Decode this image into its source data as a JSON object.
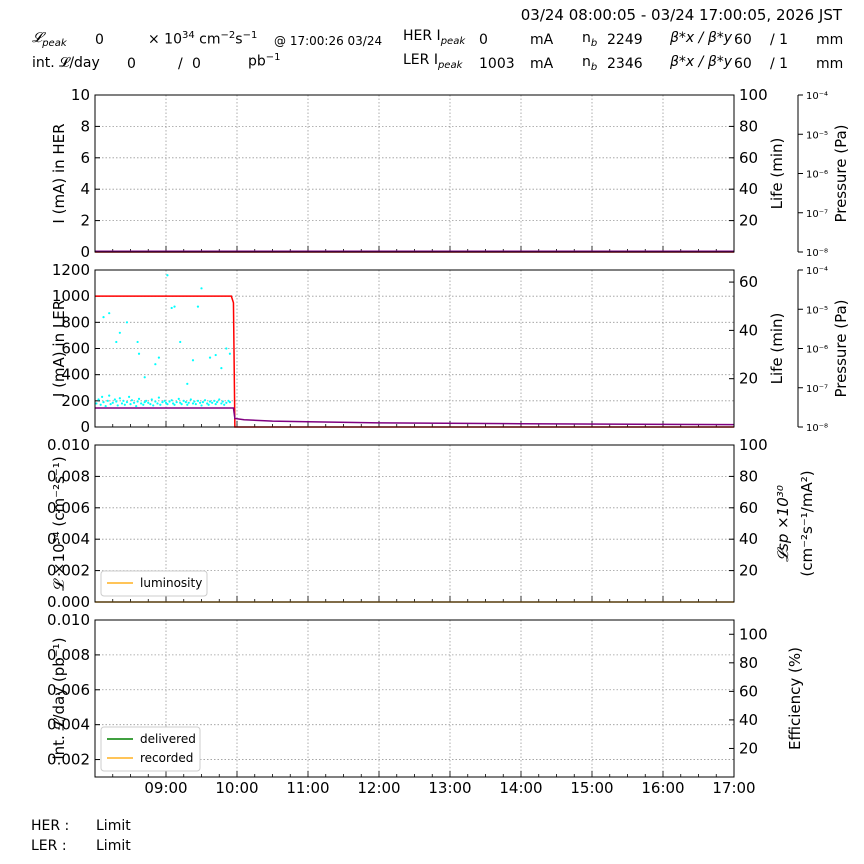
{
  "header": {
    "time_range": "03/24 08:00:05 - 03/24 17:00:05, 2026 JST",
    "lpeak_label": "𝓛",
    "lpeak_sub": "peak",
    "lpeak_value": "0",
    "lpeak_unit_a": "× 10",
    "lpeak_unit_exp1": "34",
    "lpeak_unit_b": " cm",
    "lpeak_unit_exp2": "−2",
    "lpeak_unit_c": "s",
    "lpeak_unit_exp3": "−1",
    "lpeak_time": "@ 17:00:26 03/24",
    "intl_label": "int. 𝓛/day",
    "intl_value": "0",
    "intl_slash": "/",
    "intl_value2": "0",
    "intl_unit": "pb",
    "intl_unit_exp": "−1",
    "her_label": "HER I",
    "her_sub": "peak",
    "her_value": "0",
    "her_unit": "mA",
    "ler_label": "LER I",
    "ler_sub": "peak",
    "ler_value": "1003",
    "ler_unit": "mA",
    "nb_label": "n",
    "nb_sub": "b",
    "nb_her": "2249",
    "nb_ler": "2346",
    "beta_label": "β*x / β*y",
    "beta_her_x": "60",
    "beta_her_y": "/ 1",
    "beta_ler_x": "60",
    "beta_ler_y": "/ 1",
    "beta_unit": "mm"
  },
  "footer": {
    "her_label": "HER :",
    "her_status": "Limit",
    "ler_label": "LER :",
    "ler_status": "Limit"
  },
  "chart_data": [
    {
      "type": "line",
      "panel": "HER",
      "ylabel": "I (mA) in HER",
      "ylim": [
        0,
        10
      ],
      "yticks": [
        "0",
        "2",
        "4",
        "6",
        "8",
        "10"
      ],
      "right_ylabel": "Life (min)",
      "right_ylim": [
        0,
        100
      ],
      "right_yticks": [
        "20",
        "40",
        "60",
        "80",
        "100"
      ],
      "pressure_label": "Pressure (Pa)",
      "pressure_ticks": [
        "10⁻⁸",
        "10⁻⁷",
        "10⁻⁶",
        "10⁻⁵",
        "10⁻⁴"
      ],
      "grid": true,
      "series": [
        {
          "color": "#ff0000",
          "x": [
            8.0,
            17.0
          ],
          "y": [
            0,
            0
          ]
        },
        {
          "color": "#800080",
          "x": [
            8.0,
            17.0
          ],
          "y": [
            0.05,
            0.05
          ]
        }
      ]
    },
    {
      "type": "line",
      "panel": "LER",
      "ylabel": "I (mA) in LER",
      "ylim": [
        0,
        1200
      ],
      "yticks": [
        "0",
        "200",
        "400",
        "600",
        "800",
        "1000",
        "1200"
      ],
      "right_ylabel": "Life (min)",
      "right_ylim": [
        0,
        65
      ],
      "right_yticks": [
        "20",
        "40",
        "60"
      ],
      "pressure_label": "Pressure (Pa)",
      "pressure_ticks": [
        "10⁻⁸",
        "10⁻⁷",
        "10⁻⁶",
        "10⁻⁵",
        "10⁻⁴"
      ],
      "grid": true,
      "series": [
        {
          "color": "#ff0000",
          "x": [
            8.0,
            9.92,
            9.95,
            9.97,
            10.0,
            17.0
          ],
          "y": [
            1000,
            1000,
            950,
            0,
            0,
            0
          ]
        },
        {
          "color": "#800080",
          "x": [
            8.0,
            9.95,
            9.97,
            10.1,
            10.5,
            11.0,
            12.0,
            14.0,
            17.0
          ],
          "y": [
            145,
            145,
            65,
            55,
            45,
            40,
            32,
            25,
            18
          ]
        }
      ],
      "scatter": {
        "color": "#00ffff",
        "x": [
          8.02,
          8.05,
          8.08,
          8.1,
          8.12,
          8.15,
          8.18,
          8.2,
          8.22,
          8.25,
          8.28,
          8.3,
          8.32,
          8.35,
          8.38,
          8.4,
          8.42,
          8.45,
          8.48,
          8.5,
          8.52,
          8.55,
          8.58,
          8.6,
          8.62,
          8.65,
          8.68,
          8.7,
          8.72,
          8.75,
          8.78,
          8.8,
          8.82,
          8.85,
          8.88,
          8.9,
          8.92,
          8.95,
          8.98,
          9.0,
          9.02,
          9.05,
          9.08,
          9.1,
          9.12,
          9.15,
          9.18,
          9.2,
          9.22,
          9.25,
          9.28,
          9.3,
          9.32,
          9.35,
          9.38,
          9.4,
          9.42,
          9.45,
          9.48,
          9.5,
          9.52,
          9.55,
          9.58,
          9.6,
          9.62,
          9.65,
          9.68,
          9.7,
          9.72,
          9.75,
          9.78,
          9.8,
          9.82,
          9.85,
          9.88,
          9.9,
          8.12,
          8.2,
          8.3,
          8.35,
          8.45,
          8.6,
          8.62,
          8.7,
          8.85,
          8.9,
          9.02,
          9.08,
          9.12,
          9.2,
          9.3,
          9.38,
          9.45,
          9.5,
          9.62,
          9.7,
          9.78,
          9.85,
          9.9
        ],
        "y": [
          180,
          210,
          170,
          230,
          190,
          160,
          200,
          240,
          175,
          185,
          210,
          195,
          165,
          220,
          180,
          200,
          170,
          190,
          230,
          175,
          205,
          185,
          160,
          195,
          215,
          180,
          170,
          190,
          200,
          185,
          175,
          210,
          165,
          195,
          180,
          225,
          170,
          190,
          200,
          185,
          175,
          195,
          205,
          180,
          170,
          190,
          215,
          185,
          175,
          200,
          190,
          170,
          185,
          210,
          180,
          195,
          175,
          200,
          185,
          165,
          190,
          205,
          180,
          170,
          195,
          185,
          200,
          175,
          190,
          210,
          180,
          195,
          170,
          185,
          200,
          190,
          840,
          870,
          650,
          720,
          800,
          650,
          560,
          380,
          480,
          530,
          1160,
          910,
          920,
          650,
          330,
          510,
          920,
          1060,
          530,
          550,
          450,
          600,
          560
        ]
      }
    },
    {
      "type": "line",
      "panel": "luminosity",
      "ylabel": "𝓛 ×10³⁴ (cm⁻²s⁻¹)",
      "ylim": [
        0,
        0.01
      ],
      "yticks": [
        "0.000",
        "0.002",
        "0.004",
        "0.006",
        "0.008",
        "0.010"
      ],
      "right_ylabel": "𝓛sp ×10³⁰",
      "right_ylabel2": "(cm⁻²s⁻¹/mA²)",
      "right_ylim": [
        0,
        100
      ],
      "right_yticks": [
        "20",
        "40",
        "60",
        "80",
        "100"
      ],
      "grid": true,
      "legend": [
        {
          "name": "luminosity",
          "color": "#ffb020"
        }
      ],
      "legend_position": "lower-left",
      "series": [
        {
          "name": "luminosity",
          "color": "#ffb020",
          "x": [
            8.0,
            17.0
          ],
          "y": [
            0,
            0
          ]
        }
      ]
    },
    {
      "type": "line",
      "panel": "integrated",
      "ylabel": "int. 𝓛/day (pb⁻¹)",
      "ylim": [
        0.001,
        0.01
      ],
      "yticks": [
        "0.002",
        "0.004",
        "0.006",
        "0.008",
        "0.010"
      ],
      "right_ylabel": "Efficiency (%)",
      "right_ylim": [
        0,
        110
      ],
      "right_yticks": [
        "20",
        "40",
        "60",
        "80",
        "100"
      ],
      "grid": true,
      "legend": [
        {
          "name": "delivered",
          "color": "#008000"
        },
        {
          "name": "recorded",
          "color": "#ffb020"
        }
      ],
      "legend_position": "lower-left",
      "xticks": [
        "09:00",
        "10:00",
        "11:00",
        "12:00",
        "13:00",
        "14:00",
        "15:00",
        "16:00",
        "17:00"
      ],
      "xlim": [
        8.0,
        17.0
      ],
      "series": []
    }
  ]
}
